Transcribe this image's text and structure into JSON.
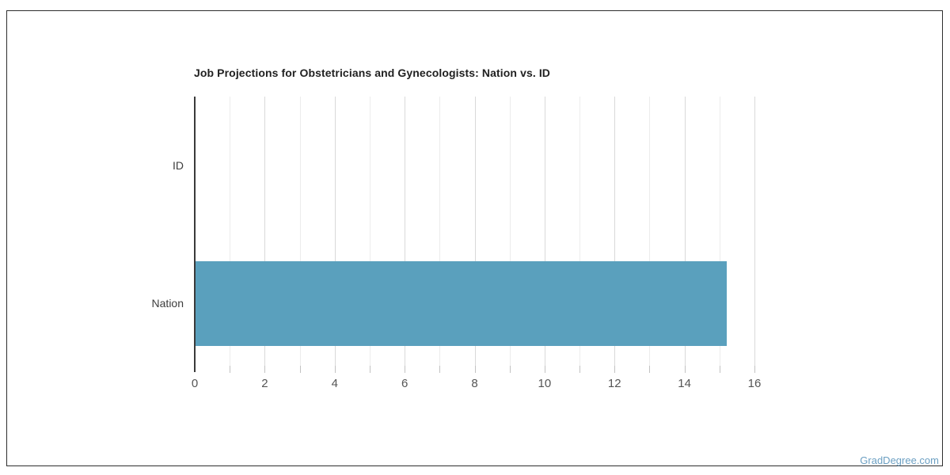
{
  "page": {
    "background": "#ffffff",
    "border_color": "#2e2e2e"
  },
  "watermark": {
    "text": "GradDegree.com",
    "color": "#6b9fc2"
  },
  "chart_data": {
    "type": "bar",
    "orientation": "horizontal",
    "title": "Job Projections for Obstetricians and Gynecologists: Nation vs. ID",
    "categories": [
      "ID",
      "Nation"
    ],
    "values": [
      0,
      15.2
    ],
    "xlabel": "",
    "ylabel": "",
    "xlim": [
      0,
      16
    ],
    "x_major_ticks": [
      0,
      2,
      4,
      6,
      8,
      10,
      12,
      14,
      16
    ],
    "x_minor_step": 1,
    "grid": "on",
    "legend": "none",
    "bar_color": "#5aa0bd",
    "gridline_color_minor": "#ececec",
    "gridline_color_major": "#d9d9d9",
    "axis_line_color": "#3a3a3a"
  }
}
